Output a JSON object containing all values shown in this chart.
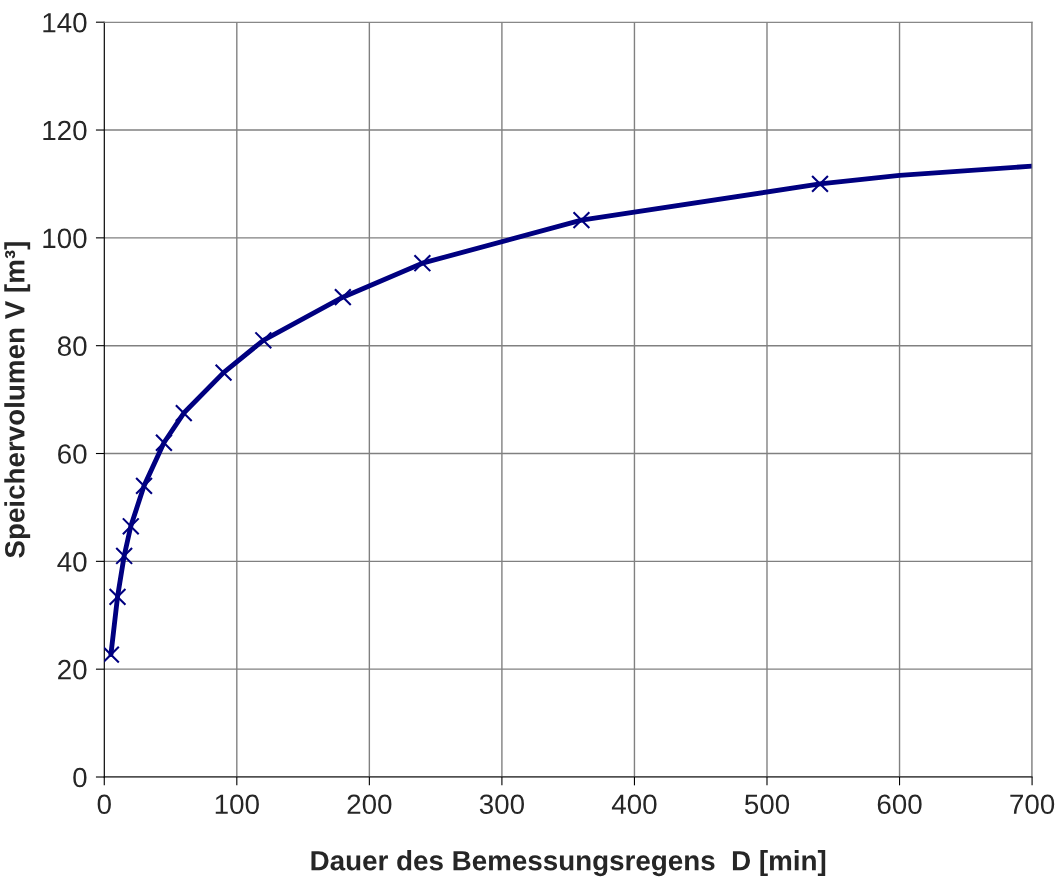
{
  "chart_data": {
    "type": "line",
    "xlabel": "Dauer des Bemessungsregens  D [min]",
    "ylabel": "Speichervolumen V [m³]",
    "xlim": [
      0,
      700
    ],
    "xticks": [
      0,
      100,
      200,
      300,
      400,
      500,
      600,
      700
    ],
    "ylim": [
      0,
      140
    ],
    "yticks": [
      0,
      20,
      40,
      60,
      80,
      100,
      120,
      140
    ],
    "grid": true,
    "series": [
      {
        "color": "#000080",
        "marker": "none",
        "line_style": "solid",
        "x": [
          5,
          10,
          15,
          20,
          30,
          45,
          60,
          90,
          120,
          180,
          240,
          360,
          540,
          600,
          700
        ],
        "values": [
          22.7,
          33.4,
          41,
          46.5,
          54,
          62,
          67.5,
          75,
          81,
          89,
          95.3,
          103.3,
          110,
          111.6,
          113.3
        ]
      },
      {
        "type": "scatter",
        "color": "#000080",
        "marker": "cross",
        "x": [
          5,
          10,
          15,
          20,
          30,
          45,
          60,
          90,
          120,
          180,
          240,
          360,
          540
        ],
        "values": [
          22.7,
          33.4,
          41,
          46.5,
          54,
          62,
          67.5,
          75,
          81,
          89,
          95.3,
          103.3,
          110
        ]
      }
    ]
  }
}
